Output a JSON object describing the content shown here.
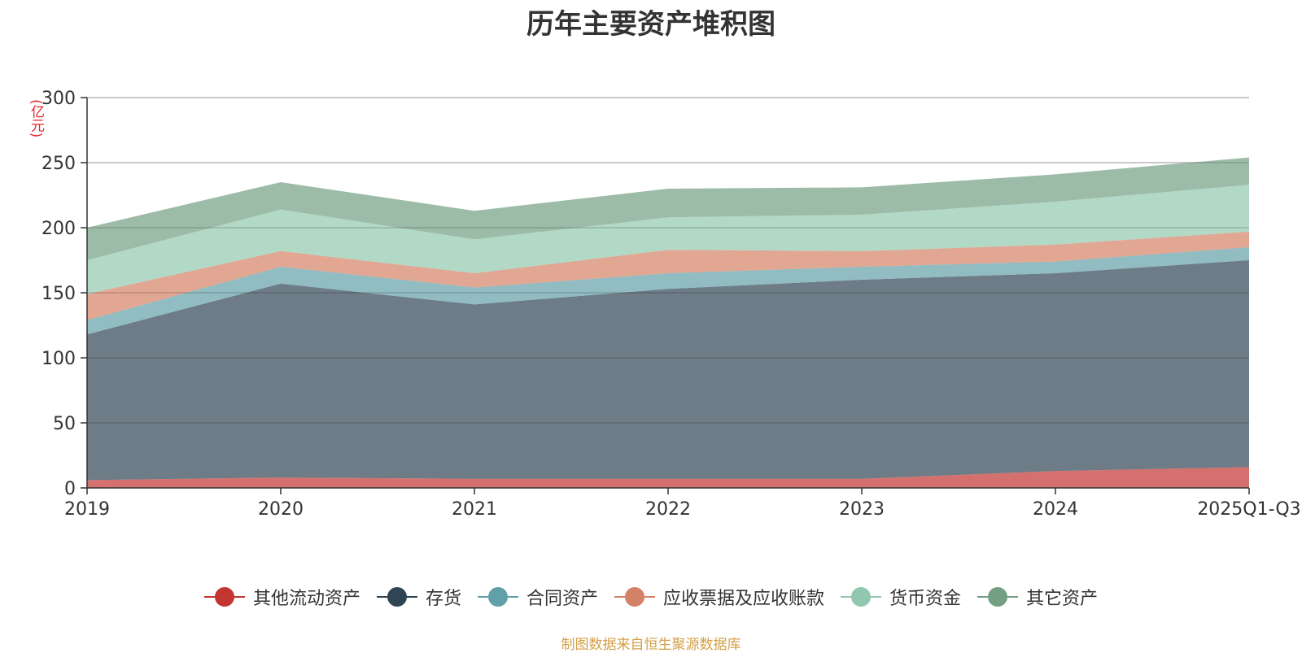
{
  "chart_data": {
    "type": "area",
    "stacked": true,
    "title": "历年主要资产堆积图",
    "unit_label": "(亿元)",
    "categories": [
      "2019",
      "2020",
      "2021",
      "2022",
      "2023",
      "2024",
      "2025Q1-Q3"
    ],
    "ylim": [
      0,
      300
    ],
    "yticks": [
      0,
      50,
      100,
      150,
      200,
      250,
      300
    ],
    "grid": true,
    "legend_position": "bottom",
    "series": [
      {
        "name": "其他流动资产",
        "color": "#c23531",
        "values": [
          6,
          8,
          7,
          7,
          7,
          13,
          16
        ]
      },
      {
        "name": "存货",
        "color": "#2f4554",
        "values": [
          112,
          149,
          134,
          146,
          153,
          152,
          159
        ]
      },
      {
        "name": "合同资产",
        "color": "#61a0a8",
        "values": [
          11,
          13,
          13,
          12,
          10,
          9,
          10
        ]
      },
      {
        "name": "应收票据及应收账款",
        "color": "#d48265",
        "values": [
          20,
          12,
          11,
          18,
          12,
          13,
          12
        ]
      },
      {
        "name": "货币资金",
        "color": "#91c7ae",
        "values": [
          26,
          32,
          26,
          25,
          28,
          33,
          36
        ]
      },
      {
        "name": "其它资产",
        "color": "#749f83",
        "values": [
          25,
          21,
          22,
          22,
          21,
          21,
          21
        ]
      }
    ]
  },
  "source": "制图数据来自恒生聚源数据库"
}
